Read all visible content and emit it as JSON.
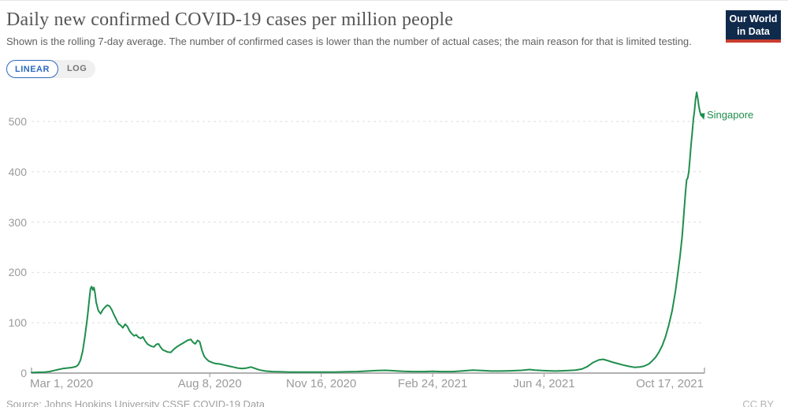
{
  "header": {
    "title": "Daily new confirmed COVID-19 cases per million people",
    "subtitle": "Shown is the rolling 7-day average. The number of confirmed cases is lower than the number of actual cases; the main reason for that is limited testing.",
    "logo": {
      "line1": "Our World",
      "line2": "in Data",
      "bg_color": "#102a4c",
      "accent_color": "#c93c2e"
    }
  },
  "controls": {
    "scale_buttons": [
      {
        "label": "LINEAR",
        "active": true
      },
      {
        "label": "LOG",
        "active": false
      }
    ],
    "active_color": "#2d6bbf"
  },
  "footer": {
    "source": "Source: Johns Hopkins University CSSE COVID-19 Data",
    "license": "CC BY"
  },
  "chart_data": {
    "type": "line",
    "title": "Daily new confirmed COVID-19 cases per million people",
    "subtitle": "Shown is the rolling 7-day average. The number of confirmed cases is lower than the number of actual cases; the main reason for that is limited testing.",
    "grid": "dashed-horizontal",
    "legend_position": "end-of-line-label",
    "end_label": "Singapore",
    "x_axis": {
      "unit": "days since 2020-03-01",
      "domain_days": [
        0,
        604
      ],
      "ticks": [
        {
          "label": "Mar 1, 2020",
          "day": 0
        },
        {
          "label": "Aug 8, 2020",
          "day": 160
        },
        {
          "label": "Nov 16, 2020",
          "day": 260
        },
        {
          "label": "Feb 24, 2021",
          "day": 360
        },
        {
          "label": "Jun 4, 2021",
          "day": 460
        },
        {
          "label": "Oct 17, 2021",
          "day": 595
        }
      ]
    },
    "y_axis": {
      "ticks": [
        0,
        100,
        200,
        300,
        400,
        500
      ],
      "range": [
        0,
        575
      ]
    },
    "series": [
      {
        "name": "Singapore",
        "color": "#1f8e4d",
        "points_day_value": [
          [
            0,
            1
          ],
          [
            6,
            1.5
          ],
          [
            12,
            2
          ],
          [
            16,
            3
          ],
          [
            20,
            5
          ],
          [
            24,
            7
          ],
          [
            28,
            9
          ],
          [
            32,
            10
          ],
          [
            36,
            11
          ],
          [
            40,
            13
          ],
          [
            42,
            17
          ],
          [
            44,
            26
          ],
          [
            46,
            44
          ],
          [
            48,
            74
          ],
          [
            50,
            108
          ],
          [
            51,
            128
          ],
          [
            52,
            149
          ],
          [
            53,
            168
          ],
          [
            54,
            172
          ],
          [
            55,
            165
          ],
          [
            56,
            170
          ],
          [
            57,
            159
          ],
          [
            58,
            141
          ],
          [
            60,
            124
          ],
          [
            62,
            118
          ],
          [
            64,
            126
          ],
          [
            66,
            131
          ],
          [
            68,
            135
          ],
          [
            70,
            133
          ],
          [
            72,
            126
          ],
          [
            74,
            116
          ],
          [
            76,
            107
          ],
          [
            78,
            98
          ],
          [
            80,
            95
          ],
          [
            82,
            90
          ],
          [
            84,
            97
          ],
          [
            86,
            93
          ],
          [
            88,
            84
          ],
          [
            90,
            78
          ],
          [
            92,
            74
          ],
          [
            94,
            76
          ],
          [
            96,
            71
          ],
          [
            98,
            69
          ],
          [
            100,
            72
          ],
          [
            102,
            64
          ],
          [
            104,
            58
          ],
          [
            106,
            55
          ],
          [
            108,
            53
          ],
          [
            110,
            52
          ],
          [
            112,
            57
          ],
          [
            114,
            58
          ],
          [
            116,
            51
          ],
          [
            118,
            46
          ],
          [
            120,
            44
          ],
          [
            122,
            42
          ],
          [
            125,
            41
          ],
          [
            128,
            48
          ],
          [
            131,
            53
          ],
          [
            134,
            57
          ],
          [
            137,
            61
          ],
          [
            140,
            65
          ],
          [
            143,
            67
          ],
          [
            145,
            61
          ],
          [
            147,
            58
          ],
          [
            149,
            65
          ],
          [
            151,
            62
          ],
          [
            153,
            45
          ],
          [
            155,
            33
          ],
          [
            157,
            28
          ],
          [
            159,
            24
          ],
          [
            162,
            21
          ],
          [
            165,
            19
          ],
          [
            169,
            18
          ],
          [
            173,
            16
          ],
          [
            177,
            14
          ],
          [
            181,
            12
          ],
          [
            185,
            10
          ],
          [
            189,
            9
          ],
          [
            193,
            10
          ],
          [
            197,
            12
          ],
          [
            201,
            9
          ],
          [
            205,
            6
          ],
          [
            210,
            4
          ],
          [
            216,
            3
          ],
          [
            224,
            2.5
          ],
          [
            232,
            2
          ],
          [
            242,
            2
          ],
          [
            252,
            2
          ],
          [
            262,
            2
          ],
          [
            272,
            2
          ],
          [
            282,
            2.5
          ],
          [
            292,
            3
          ],
          [
            302,
            4
          ],
          [
            310,
            5
          ],
          [
            318,
            5.5
          ],
          [
            326,
            4.5
          ],
          [
            334,
            3.5
          ],
          [
            342,
            3
          ],
          [
            352,
            3
          ],
          [
            360,
            3.5
          ],
          [
            368,
            3
          ],
          [
            378,
            3
          ],
          [
            388,
            4.5
          ],
          [
            396,
            6
          ],
          [
            404,
            5
          ],
          [
            412,
            4
          ],
          [
            420,
            4
          ],
          [
            430,
            4.5
          ],
          [
            440,
            5.5
          ],
          [
            447,
            7
          ],
          [
            452,
            6
          ],
          [
            458,
            5
          ],
          [
            464,
            4.5
          ],
          [
            470,
            4
          ],
          [
            476,
            4.5
          ],
          [
            482,
            5
          ],
          [
            488,
            6
          ],
          [
            494,
            8
          ],
          [
            499,
            13
          ],
          [
            504,
            21
          ],
          [
            509,
            26
          ],
          [
            513,
            27.5
          ],
          [
            517,
            25
          ],
          [
            521,
            22
          ],
          [
            526,
            19
          ],
          [
            531,
            16
          ],
          [
            536,
            13.5
          ],
          [
            541,
            11.5
          ],
          [
            546,
            12
          ],
          [
            550,
            14
          ],
          [
            554,
            18
          ],
          [
            557,
            24
          ],
          [
            560,
            31
          ],
          [
            563,
            41
          ],
          [
            566,
            54
          ],
          [
            569,
            72
          ],
          [
            572,
            96
          ],
          [
            575,
            124
          ],
          [
            578,
            163
          ],
          [
            580,
            197
          ],
          [
            582,
            231
          ],
          [
            584,
            272
          ],
          [
            586,
            330
          ],
          [
            587,
            361
          ],
          [
            588,
            384
          ],
          [
            589,
            388
          ],
          [
            590,
            401
          ],
          [
            591,
            427
          ],
          [
            592,
            454
          ],
          [
            593,
            477
          ],
          [
            594,
            504
          ],
          [
            595,
            521
          ],
          [
            596,
            544
          ],
          [
            597,
            558
          ],
          [
            598,
            546
          ],
          [
            599,
            530
          ],
          [
            600,
            519
          ],
          [
            601,
            512
          ],
          [
            602,
            515
          ],
          [
            603,
            508
          ]
        ]
      }
    ]
  }
}
